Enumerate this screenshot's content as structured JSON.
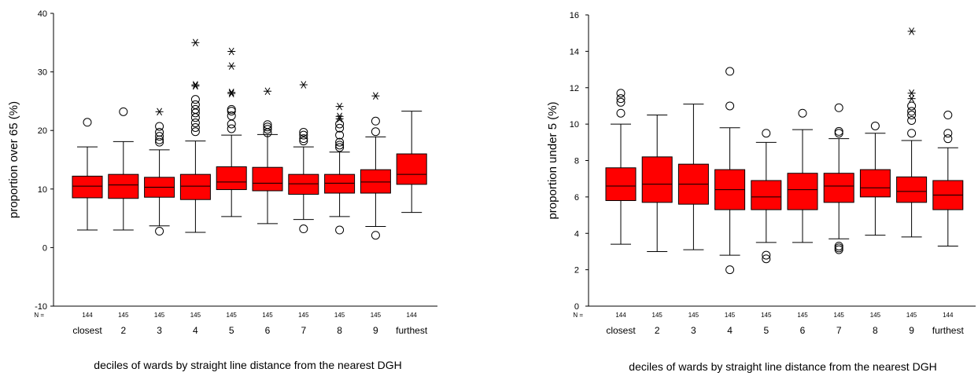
{
  "chart_data": [
    {
      "type": "boxplot",
      "xlabel": "deciles of wards by straight line distance from the nearest DGH",
      "ylabel": "proportion over 65 (%)",
      "ylim": [
        -10,
        40
      ],
      "yticks": [
        -10,
        0,
        10,
        20,
        30,
        40
      ],
      "n_label": "N =",
      "categories": [
        "closest",
        "2",
        "3",
        "4",
        "5",
        "6",
        "7",
        "8",
        "9",
        "furthest"
      ],
      "n": [
        "144",
        "145",
        "145",
        "145",
        "145",
        "145",
        "145",
        "145",
        "145",
        "144"
      ],
      "boxes": [
        {
          "whisker_low": 3.0,
          "q1": 8.5,
          "median": 10.5,
          "q3": 12.2,
          "whisker_high": 17.2,
          "outliers": [
            21.4
          ],
          "extremes": []
        },
        {
          "whisker_low": 3.0,
          "q1": 8.4,
          "median": 10.7,
          "q3": 12.5,
          "whisker_high": 18.1,
          "outliers": [
            23.2
          ],
          "extremes": []
        },
        {
          "whisker_low": 3.7,
          "q1": 8.6,
          "median": 10.3,
          "q3": 12.0,
          "whisker_high": 16.7,
          "outliers": [
            2.8,
            18.0,
            18.4,
            19.0,
            19.7,
            20.7
          ],
          "extremes": [
            23.2
          ]
        },
        {
          "whisker_low": 2.6,
          "q1": 8.2,
          "median": 10.5,
          "q3": 12.5,
          "whisker_high": 18.2,
          "outliers": [
            19.8,
            20.5,
            21.3,
            22.2,
            23.0,
            23.6,
            24.4,
            25.3
          ],
          "extremes": [
            27.6,
            27.8,
            35.0
          ]
        },
        {
          "whisker_low": 5.3,
          "q1": 9.9,
          "median": 11.2,
          "q3": 13.8,
          "whisker_high": 19.2,
          "outliers": [
            20.3,
            21.1,
            22.5,
            23.3,
            23.6
          ],
          "extremes": [
            26.3,
            26.5,
            31.0,
            33.5
          ]
        },
        {
          "whisker_low": 4.1,
          "q1": 9.7,
          "median": 11.0,
          "q3": 13.7,
          "whisker_high": 19.3,
          "outliers": [
            19.6,
            20.2,
            20.6,
            21.0
          ],
          "extremes": [
            26.7
          ]
        },
        {
          "whisker_low": 4.8,
          "q1": 9.1,
          "median": 10.9,
          "q3": 12.5,
          "whisker_high": 17.2,
          "outliers": [
            3.2,
            18.2,
            18.6,
            19.2,
            19.7
          ],
          "extremes": [
            27.8
          ]
        },
        {
          "whisker_low": 5.3,
          "q1": 9.3,
          "median": 11.0,
          "q3": 12.5,
          "whisker_high": 16.3,
          "outliers": [
            3.0,
            17.1,
            17.5,
            18.0,
            19.2,
            20.4,
            21.1
          ],
          "extremes": [
            22.0,
            22.4,
            24.1
          ]
        },
        {
          "whisker_low": 3.6,
          "q1": 9.3,
          "median": 11.2,
          "q3": 13.3,
          "whisker_high": 18.9,
          "outliers": [
            2.1,
            19.8,
            21.6
          ],
          "extremes": [
            25.9
          ]
        },
        {
          "whisker_low": 6.0,
          "q1": 10.8,
          "median": 12.5,
          "q3": 16.0,
          "whisker_high": 23.3,
          "outliers": [],
          "extremes": []
        }
      ]
    },
    {
      "type": "boxplot",
      "xlabel": "deciles of wards by straight line distance from the nearest DGH",
      "ylabel": "proportion under 5 (%)",
      "ylim": [
        0,
        16
      ],
      "yticks": [
        0,
        2,
        4,
        6,
        8,
        10,
        12,
        14,
        16
      ],
      "n_label": "N =",
      "categories": [
        "closest",
        "2",
        "3",
        "4",
        "5",
        "6",
        "7",
        "8",
        "9",
        "furthest"
      ],
      "n": [
        "144",
        "145",
        "145",
        "145",
        "145",
        "145",
        "145",
        "145",
        "145",
        "144"
      ],
      "boxes": [
        {
          "whisker_low": 3.4,
          "q1": 5.8,
          "median": 6.6,
          "q3": 7.6,
          "whisker_high": 10.0,
          "outliers": [
            10.6,
            11.2,
            11.4,
            11.7
          ],
          "extremes": []
        },
        {
          "whisker_low": 3.0,
          "q1": 5.7,
          "median": 6.7,
          "q3": 8.2,
          "whisker_high": 10.5,
          "outliers": [],
          "extremes": []
        },
        {
          "whisker_low": 3.1,
          "q1": 5.6,
          "median": 6.7,
          "q3": 7.8,
          "whisker_high": 11.1,
          "outliers": [],
          "extremes": []
        },
        {
          "whisker_low": 2.8,
          "q1": 5.3,
          "median": 6.4,
          "q3": 7.5,
          "whisker_high": 9.8,
          "outliers": [
            2.0,
            11.0,
            12.9
          ],
          "extremes": []
        },
        {
          "whisker_low": 3.5,
          "q1": 5.3,
          "median": 6.0,
          "q3": 6.9,
          "whisker_high": 9.0,
          "outliers": [
            2.6,
            2.8,
            9.5
          ],
          "extremes": []
        },
        {
          "whisker_low": 3.5,
          "q1": 5.3,
          "median": 6.4,
          "q3": 7.3,
          "whisker_high": 9.7,
          "outliers": [
            10.6
          ],
          "extremes": []
        },
        {
          "whisker_low": 3.7,
          "q1": 5.7,
          "median": 6.6,
          "q3": 7.3,
          "whisker_high": 9.2,
          "outliers": [
            3.1,
            3.2,
            3.3,
            9.5,
            9.6,
            10.9
          ],
          "extremes": []
        },
        {
          "whisker_low": 3.9,
          "q1": 6.0,
          "median": 6.5,
          "q3": 7.5,
          "whisker_high": 9.5,
          "outliers": [
            9.9
          ],
          "extremes": []
        },
        {
          "whisker_low": 3.8,
          "q1": 5.7,
          "median": 6.3,
          "q3": 7.1,
          "whisker_high": 9.1,
          "outliers": [
            9.5,
            10.2,
            10.5,
            10.7,
            11.0
          ],
          "extremes": [
            11.4,
            11.7,
            15.1
          ]
        },
        {
          "whisker_low": 3.3,
          "q1": 5.3,
          "median": 6.1,
          "q3": 6.9,
          "whisker_high": 8.7,
          "outliers": [
            9.2,
            9.5,
            10.5
          ],
          "extremes": []
        }
      ]
    }
  ],
  "colors": {
    "box_fill": "#ff0000",
    "stroke": "#000000",
    "background": "#ffffff"
  }
}
